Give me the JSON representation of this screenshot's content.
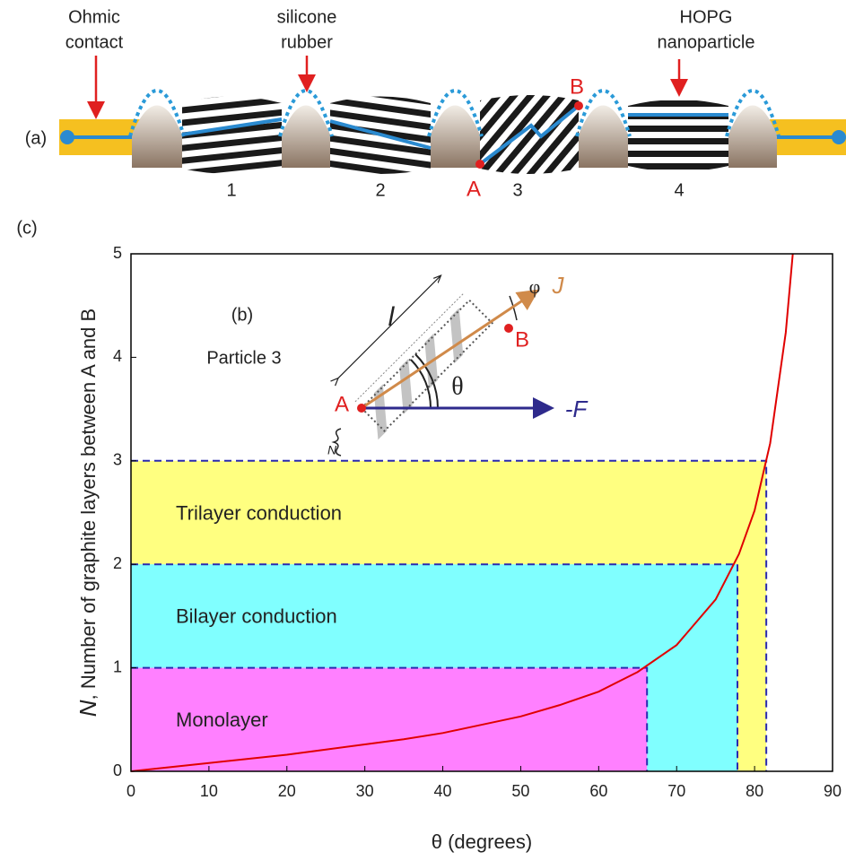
{
  "chart_data": {
    "type": "line",
    "panel_label": "(c)",
    "xlabel": "θ  (degrees)",
    "ylabel_symbol": "N",
    "ylabel": ", Number of graphite layers between A and B",
    "x": [
      0,
      5,
      10,
      15,
      20,
      25,
      30,
      35,
      40,
      45,
      50,
      55,
      60,
      65,
      70,
      75,
      78,
      80,
      82,
      84,
      84.9
    ],
    "values": [
      0,
      0.04,
      0.08,
      0.12,
      0.16,
      0.21,
      0.26,
      0.31,
      0.37,
      0.45,
      0.53,
      0.64,
      0.77,
      0.96,
      1.22,
      1.66,
      2.1,
      2.52,
      3.17,
      4.24,
      5
    ],
    "color": "#e00000",
    "regions": [
      {
        "name": "Trilayer conduction",
        "n": 3,
        "theta": 81.5,
        "color": "#ffff80"
      },
      {
        "name": "Bilayer conduction",
        "n": 2,
        "theta": 77.8,
        "color": "#80ffff"
      },
      {
        "name": "Monolayer",
        "n": 1,
        "theta": 66.2,
        "color": "#ff80ff"
      }
    ],
    "xlim": [
      0,
      90
    ],
    "ylim": [
      0,
      5
    ],
    "xticks": [
      0,
      10,
      20,
      30,
      40,
      50,
      60,
      70,
      80,
      90
    ],
    "yticks": [
      0,
      1,
      2,
      3,
      4,
      5
    ]
  },
  "diagram_a": {
    "panel_label": "(a)",
    "ohmic": [
      "Ohmic",
      "contact"
    ],
    "rubber": [
      "silicone",
      "rubber"
    ],
    "hopg": [
      "HOPG",
      "nanoparticle"
    ],
    "particles": [
      "1",
      "2",
      "3",
      "4"
    ],
    "point_a": "A",
    "point_b": "B"
  },
  "diagram_b": {
    "panel_label": "(b)",
    "title": "Particle 3",
    "length": "l",
    "phi": "φ",
    "current": "J",
    "point_a": "A",
    "point_b": "B",
    "theta": "θ",
    "force": "-F",
    "layers": "N"
  }
}
